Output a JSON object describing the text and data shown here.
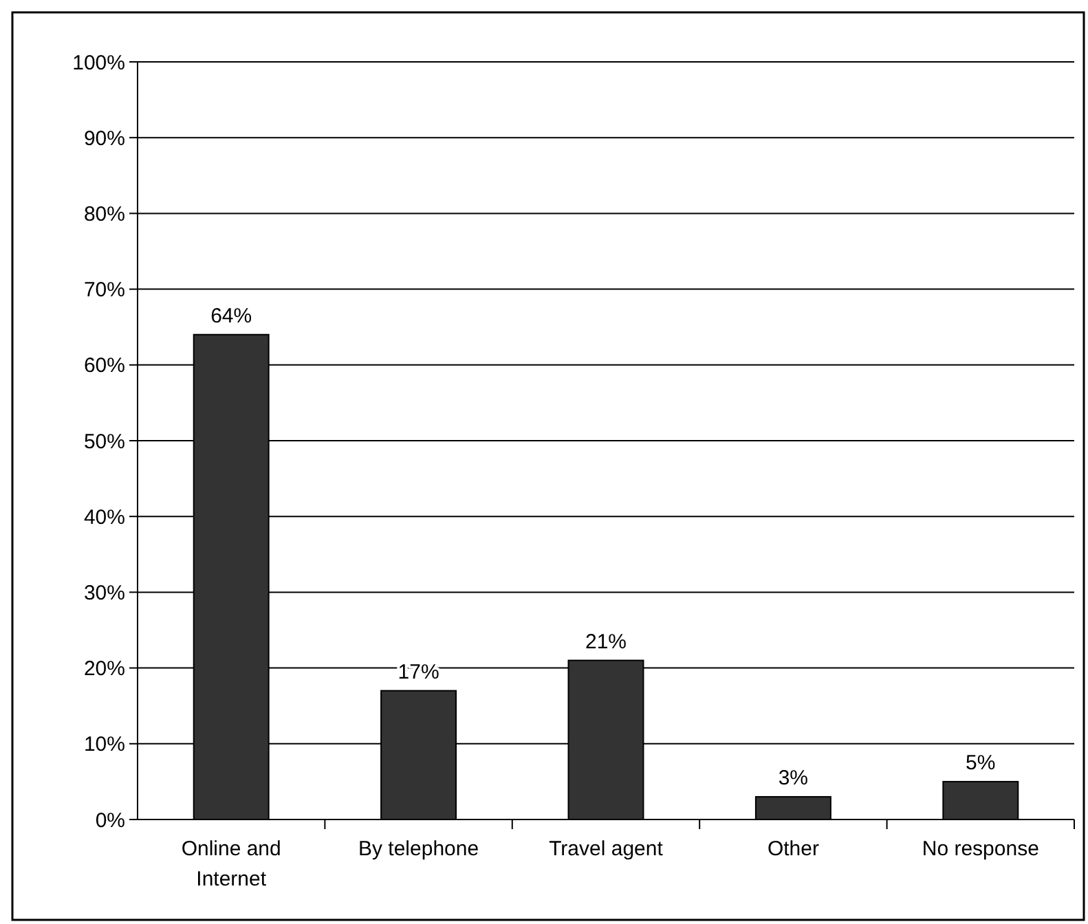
{
  "chart_data": {
    "type": "bar",
    "categories": [
      "Online and Internet",
      "By telephone",
      "Travel agent",
      "Other",
      "No response"
    ],
    "values": [
      64,
      17,
      21,
      3,
      5
    ],
    "value_labels": [
      "64%",
      "17%",
      "21%",
      "3%",
      "5%"
    ],
    "color": "#333333",
    "ylim": [
      0,
      100
    ],
    "yticks": [
      {
        "value": 0,
        "label": "0%"
      },
      {
        "value": 10,
        "label": "10%"
      },
      {
        "value": 20,
        "label": "20%"
      },
      {
        "value": 30,
        "label": "30%"
      },
      {
        "value": 40,
        "label": "40%"
      },
      {
        "value": 50,
        "label": "50%"
      },
      {
        "value": 60,
        "label": "60%"
      },
      {
        "value": 70,
        "label": "70%"
      },
      {
        "value": 80,
        "label": "80%"
      },
      {
        "value": 90,
        "label": "90%"
      },
      {
        "value": 100,
        "label": "100%"
      }
    ],
    "grid": "y"
  }
}
